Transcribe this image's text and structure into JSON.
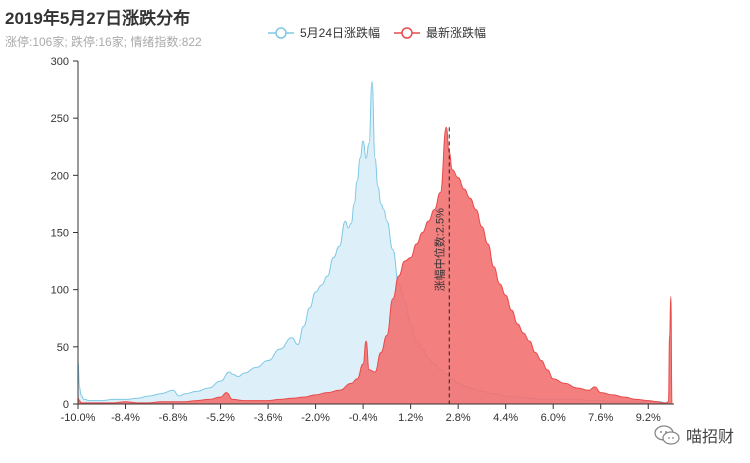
{
  "header": {
    "title": "2019年5月27日涨跌分布",
    "subtitle": "涨停:106家; 跌停:16家; 情绪指数:822"
  },
  "watermark": {
    "text": "喵招财",
    "icon": "wechat-icon"
  },
  "chart_data": {
    "type": "area",
    "title": "2019年5月27日涨跌分布",
    "subtitle": "涨停:106家; 跌停:16家; 情绪指数:822",
    "xlim": [
      -10.0,
      10.0
    ],
    "ylim": [
      0,
      300
    ],
    "x_ticks": [
      -10.0,
      -8.4,
      -6.8,
      -5.2,
      -3.6,
      -2.0,
      -0.4,
      1.2,
      2.8,
      4.4,
      6.0,
      7.6,
      9.2
    ],
    "x_tick_labels": [
      "-10.0%",
      "-8.4%",
      "-6.8%",
      "-5.2%",
      "-3.6%",
      "-2.0%",
      "-0.4%",
      "1.2%",
      "2.8%",
      "4.4%",
      "6.0%",
      "7.6%",
      "9.2%"
    ],
    "y_ticks": [
      0,
      50,
      100,
      150,
      200,
      250,
      300
    ],
    "grid": false,
    "legend_position": "top-center",
    "median_marker": {
      "x": 2.5,
      "label": "涨幅中位数:2.5%"
    },
    "series": [
      {
        "name": "5月24日涨跌幅",
        "color": "#7ec8e3",
        "fill": "#ddf0fa",
        "x": [
          -10.0,
          -9.95,
          -9.9,
          -9.8,
          -9.6,
          -9.2,
          -8.8,
          -8.4,
          -8.0,
          -7.6,
          -7.2,
          -6.8,
          -6.6,
          -6.4,
          -6.0,
          -5.6,
          -5.2,
          -4.9,
          -4.8,
          -4.6,
          -4.4,
          -4.0,
          -3.6,
          -3.2,
          -2.8,
          -2.6,
          -2.4,
          -2.2,
          -2.0,
          -1.8,
          -1.6,
          -1.4,
          -1.2,
          -1.0,
          -0.9,
          -0.8,
          -0.7,
          -0.6,
          -0.5,
          -0.4,
          -0.3,
          -0.2,
          -0.1,
          0.0,
          0.1,
          0.2,
          0.3,
          0.4,
          0.6,
          0.8,
          1.0,
          1.2,
          1.4,
          1.6,
          1.8,
          2.0,
          2.2,
          2.4,
          2.6,
          2.8,
          3.2,
          3.6,
          4.0,
          4.4,
          4.8,
          5.2,
          5.6,
          6.0,
          6.4,
          6.8,
          7.2,
          7.6,
          8.0,
          8.4,
          8.8,
          9.2,
          9.6,
          9.8,
          10.0
        ],
        "values": [
          38,
          15,
          8,
          4,
          3,
          3,
          4,
          4,
          5,
          7,
          9,
          12,
          7,
          9,
          11,
          14,
          20,
          28,
          26,
          24,
          27,
          32,
          38,
          48,
          58,
          52,
          68,
          84,
          98,
          104,
          112,
          128,
          138,
          160,
          154,
          158,
          175,
          195,
          215,
          230,
          215,
          228,
          282,
          215,
          190,
          175,
          170,
          160,
          135,
          105,
          90,
          70,
          55,
          48,
          40,
          35,
          30,
          26,
          22,
          18,
          14,
          11,
          9,
          7,
          6,
          5,
          4,
          4,
          4,
          4,
          3,
          3,
          2,
          2,
          2,
          2,
          2,
          1,
          0
        ]
      },
      {
        "name": "最新涨跌幅",
        "color": "#e84a4a",
        "fill": "#f26d6d",
        "x": [
          -10.0,
          -9.95,
          -9.9,
          -9.6,
          -9.2,
          -8.8,
          -8.4,
          -8.0,
          -7.6,
          -7.2,
          -6.8,
          -6.4,
          -6.0,
          -5.6,
          -5.2,
          -5.0,
          -4.8,
          -4.4,
          -4.0,
          -3.6,
          -3.2,
          -2.8,
          -2.4,
          -2.0,
          -1.6,
          -1.2,
          -0.8,
          -0.6,
          -0.4,
          -0.3,
          -0.2,
          0.0,
          0.2,
          0.4,
          0.6,
          0.8,
          1.0,
          1.2,
          1.4,
          1.6,
          1.8,
          2.0,
          2.2,
          2.4,
          2.5,
          2.6,
          2.8,
          3.0,
          3.2,
          3.4,
          3.6,
          3.8,
          4.0,
          4.2,
          4.4,
          4.6,
          4.8,
          5.0,
          5.2,
          5.4,
          5.6,
          5.8,
          6.0,
          6.4,
          6.8,
          7.2,
          7.4,
          7.6,
          8.0,
          8.4,
          8.8,
          9.2,
          9.5,
          9.7,
          9.8,
          9.88,
          9.92,
          9.96,
          10.0
        ],
        "values": [
          5,
          3,
          1,
          1,
          1,
          1,
          2,
          1,
          1,
          2,
          2,
          2,
          3,
          4,
          6,
          10,
          4,
          3,
          3,
          3,
          4,
          5,
          6,
          8,
          10,
          12,
          18,
          22,
          35,
          55,
          30,
          28,
          45,
          60,
          92,
          112,
          125,
          128,
          140,
          150,
          160,
          170,
          185,
          242,
          220,
          205,
          198,
          188,
          180,
          170,
          155,
          140,
          120,
          105,
          95,
          82,
          70,
          62,
          55,
          45,
          38,
          30,
          22,
          18,
          14,
          12,
          15,
          10,
          8,
          6,
          4,
          3,
          2,
          1,
          1,
          2,
          60,
          94,
          0
        ]
      }
    ]
  }
}
